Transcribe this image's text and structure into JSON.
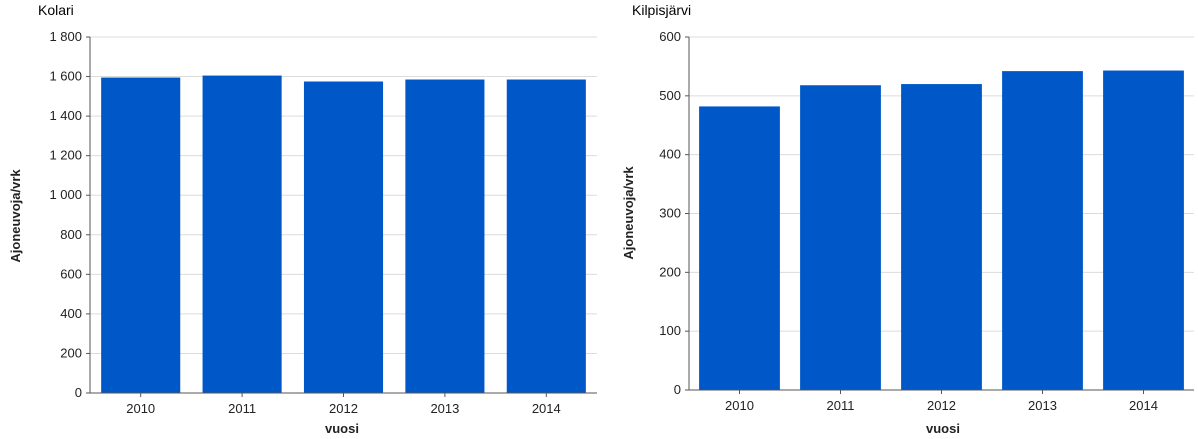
{
  "chart_data": [
    {
      "type": "bar",
      "title": "Kolari",
      "xlabel": "vuosi",
      "ylabel": "Ajoneuvoja/vrk",
      "categories": [
        "2010",
        "2011",
        "2012",
        "2013",
        "2014"
      ],
      "values": [
        1595,
        1605,
        1575,
        1585,
        1585
      ],
      "ylim": [
        0,
        1800
      ],
      "yticks": [
        0,
        200,
        400,
        600,
        800,
        1000,
        1200,
        1400,
        1600,
        1800
      ],
      "ytick_labels": [
        "0",
        "200",
        "400",
        "600",
        "800",
        "1 000",
        "1 200",
        "1 400",
        "1 600",
        "1 800"
      ],
      "grid": true,
      "bar_color": "#0057c8"
    },
    {
      "type": "bar",
      "title": "Kilpisjärvi",
      "xlabel": "vuosi",
      "ylabel": "Ajoneuvoja/vrk",
      "categories": [
        "2010",
        "2011",
        "2012",
        "2013",
        "2014"
      ],
      "values": [
        482,
        518,
        520,
        542,
        543
      ],
      "ylim": [
        0,
        600
      ],
      "yticks": [
        0,
        100,
        200,
        300,
        400,
        500,
        600
      ],
      "ytick_labels": [
        "0",
        "100",
        "200",
        "300",
        "400",
        "500",
        "600"
      ],
      "grid": true,
      "bar_color": "#0057c8"
    }
  ]
}
